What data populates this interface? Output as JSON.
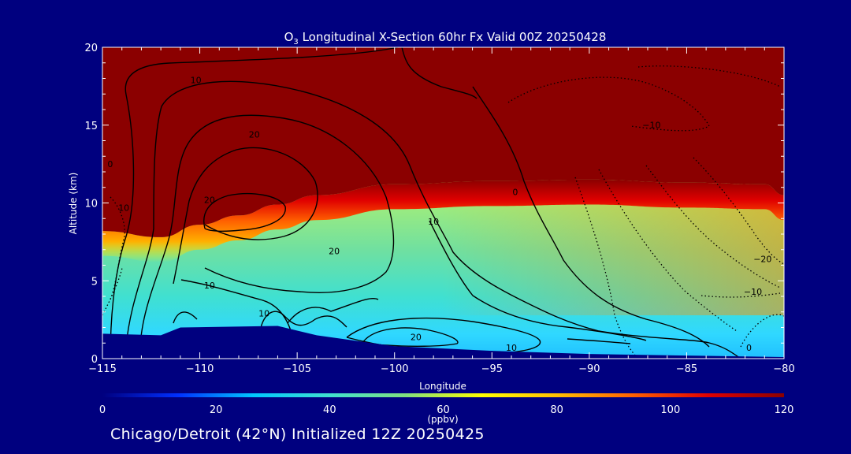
{
  "title": {
    "species_main": "O",
    "species_sub": "3",
    "rest": " Longitudinal X-Section 60hr  Fx Valid 00Z 20250428"
  },
  "footer": "Chicago/Detroit (42°N) Initialized 12Z 20250425",
  "chart_data": {
    "type": "heatmap",
    "xlabel": "Longitude",
    "ylabel": "Altitude (km)",
    "xlim": [
      -115,
      -80
    ],
    "ylim": [
      0,
      20
    ],
    "x_ticks": [
      -115,
      -110,
      -105,
      -100,
      -95,
      -90,
      -85,
      -80
    ],
    "x_tick_labels": [
      "−115",
      "−110",
      "−105",
      "−100",
      "−95",
      "−90",
      "−85",
      "−80"
    ],
    "y_ticks": [
      0,
      5,
      10,
      15,
      20
    ],
    "y_tick_labels": [
      "0",
      "5",
      "10",
      "15",
      "20"
    ],
    "colorbar": {
      "range": [
        0,
        120
      ],
      "ticks": [
        0,
        20,
        40,
        60,
        80,
        100,
        120
      ],
      "tick_labels": [
        "0",
        "20",
        "40",
        "60",
        "80",
        "100",
        "120"
      ],
      "units_label": "(ppbv)",
      "colors": [
        "#00007f",
        "#0030ff",
        "#00c8ff",
        "#40e0d0",
        "#80e080",
        "#ffff00",
        "#ffc000",
        "#ff6000",
        "#e00000",
        "#8b0000"
      ]
    },
    "fill_note": "ozone mixing ratio; >120 ppbv above tropopause (~11 km east, dips to ~8 km near -112)",
    "tropopause_km": [
      {
        "lon": -115,
        "alt": 8.2
      },
      {
        "lon": -112,
        "alt": 7.8
      },
      {
        "lon": -110,
        "alt": 8.6
      },
      {
        "lon": -108,
        "alt": 9.2
      },
      {
        "lon": -106,
        "alt": 9.9
      },
      {
        "lon": -104,
        "alt": 10.5
      },
      {
        "lon": -100,
        "alt": 11.2
      },
      {
        "lon": -95,
        "alt": 11.4
      },
      {
        "lon": -90,
        "alt": 11.5
      },
      {
        "lon": -85,
        "alt": 11.3
      },
      {
        "lon": -81,
        "alt": 11.2
      },
      {
        "lon": -80,
        "alt": 10.5
      }
    ],
    "terrain_km": [
      {
        "lon": -115,
        "alt": 1.6
      },
      {
        "lon": -112,
        "alt": 1.5
      },
      {
        "lon": -111,
        "alt": 2.0
      },
      {
        "lon": -106,
        "alt": 2.1
      },
      {
        "lon": -104,
        "alt": 1.5
      },
      {
        "lon": -100,
        "alt": 0.8
      },
      {
        "lon": -95,
        "alt": 0.5
      },
      {
        "lon": -90,
        "alt": 0.3
      },
      {
        "lon": -85,
        "alt": 0.2
      },
      {
        "lon": -80,
        "alt": 0.1
      }
    ],
    "contour_labels": [
      {
        "text": "10",
        "lon": -110.2,
        "alt": 17.7
      },
      {
        "text": "20",
        "lon": -107.2,
        "alt": 14.2
      },
      {
        "text": "0",
        "lon": -114.6,
        "alt": 12.3
      },
      {
        "text": "10",
        "lon": -113.9,
        "alt": 9.5
      },
      {
        "text": "20",
        "lon": -109.5,
        "alt": 10.0
      },
      {
        "text": "20",
        "lon": -103.1,
        "alt": 6.7
      },
      {
        "text": "10",
        "lon": -109.5,
        "alt": 4.5
      },
      {
        "text": "10",
        "lon": -106.7,
        "alt": 2.7
      },
      {
        "text": "20",
        "lon": -98.9,
        "alt": 1.2
      },
      {
        "text": "10",
        "lon": -98.0,
        "alt": 8.6
      },
      {
        "text": "0",
        "lon": -93.8,
        "alt": 10.5
      },
      {
        "text": "10",
        "lon": -94.0,
        "alt": 0.5
      },
      {
        "text": "−10",
        "lon": -86.8,
        "alt": 14.8
      },
      {
        "text": "−20",
        "lon": -81.1,
        "alt": 6.2
      },
      {
        "text": "−10",
        "lon": -81.6,
        "alt": 4.1
      },
      {
        "text": "0",
        "lon": -81.8,
        "alt": 0.5
      }
    ]
  }
}
